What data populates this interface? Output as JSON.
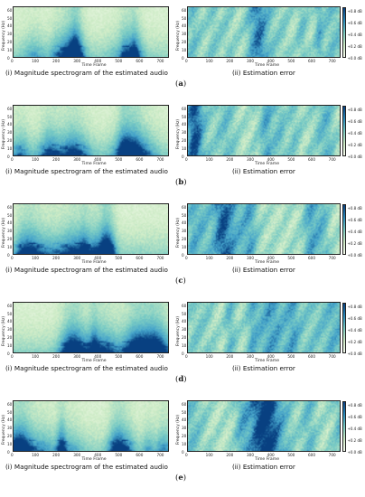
{
  "rows": [
    {
      "label": "a",
      "seed": 11
    },
    {
      "label": "b",
      "seed": 23
    },
    {
      "label": "c",
      "seed": 37
    },
    {
      "label": "d",
      "seed": 51
    },
    {
      "label": "e",
      "seed": 67
    }
  ],
  "left": {
    "caption": "(i) Magnitude spectrogram of the estimated audio",
    "ylabel": "Frequency (Hz)",
    "xlabel": "Time Frame",
    "xticks": [
      "0",
      "100",
      "200",
      "300",
      "400",
      "500",
      "600",
      "700"
    ],
    "yticks": [
      "0",
      "10",
      "20",
      "30",
      "40",
      "50",
      "60"
    ]
  },
  "right": {
    "caption": "(ii) Estimation error",
    "ylabel": "Frequency (Hz)",
    "xlabel": "Time Frame",
    "xticks": [
      "0",
      "100",
      "200",
      "300",
      "400",
      "500",
      "600",
      "700"
    ],
    "yticks": [
      "0",
      "10",
      "20",
      "30",
      "40",
      "50",
      "60"
    ],
    "colorbar_ticks": [
      "+0.8 dB",
      "+0.6 dB",
      "+0.4 dB",
      "+0.2 dB",
      "+0.0 dB"
    ]
  },
  "colors": {
    "low": "#f7fcf0",
    "mid": "#7bccc4",
    "high": "#084081"
  }
}
